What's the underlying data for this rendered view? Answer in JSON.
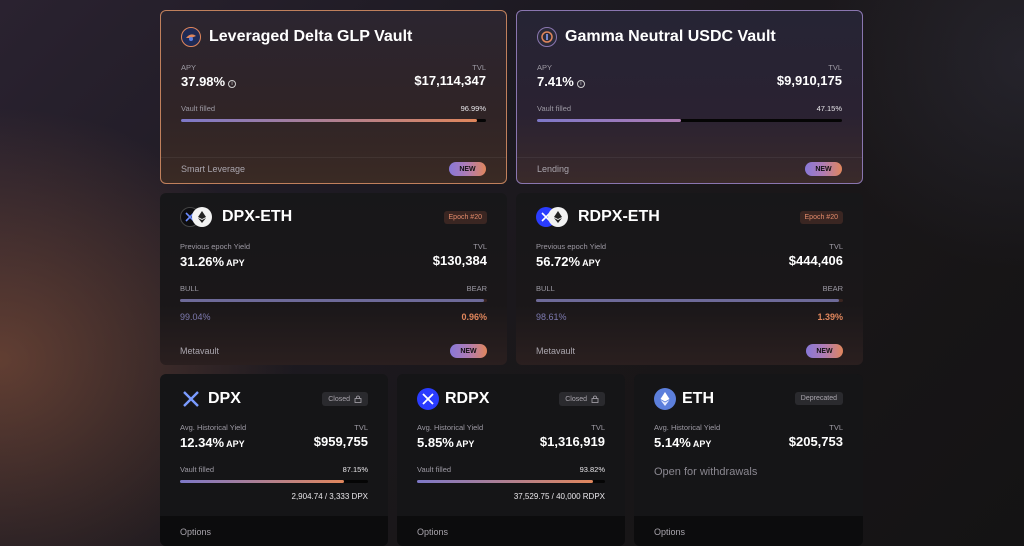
{
  "vaults": [
    {
      "title": "Leveraged Delta GLP Vault",
      "apy_label": "APY",
      "apy": "37.98%",
      "tvl_label": "TVL",
      "tvl": "$17,114,347",
      "filled_label": "Vault filled",
      "filled": "96.99%",
      "filled_fraction": 0.9699,
      "category": "Smart Leverage",
      "badge": "NEW"
    },
    {
      "title": "Gamma Neutral USDC Vault",
      "apy_label": "APY",
      "apy": "7.41%",
      "tvl_label": "TVL",
      "tvl": "$9,910,175",
      "filled_label": "Vault filled",
      "filled": "47.15%",
      "filled_fraction": 0.4715,
      "category": "Lending",
      "badge": "NEW"
    }
  ],
  "metavaults": [
    {
      "title": "DPX-ETH",
      "epoch": "Epoch #20",
      "yield_label": "Previous epoch Yield",
      "yield": "31.26%",
      "apy_suffix": "APY",
      "tvl_label": "TVL",
      "tvl": "$130,384",
      "bull_label": "BULL",
      "bear_label": "BEAR",
      "bull": "99.04%",
      "bear": "0.96%",
      "bull_fraction": 0.9904,
      "category": "Metavault",
      "badge": "NEW"
    },
    {
      "title": "RDPX-ETH",
      "epoch": "Epoch #20",
      "yield_label": "Previous epoch Yield",
      "yield": "56.72%",
      "apy_suffix": "APY",
      "tvl_label": "TVL",
      "tvl": "$444,406",
      "bull_label": "BULL",
      "bear_label": "BEAR",
      "bull": "98.61%",
      "bear": "1.39%",
      "bull_fraction": 0.9861,
      "category": "Metavault",
      "badge": "NEW"
    }
  ],
  "ssovs": [
    {
      "title": "DPX",
      "status": "Closed",
      "yield_label": "Avg. Historical Yield",
      "yield": "12.34%",
      "apy_suffix": "APY",
      "tvl_label": "TVL",
      "tvl": "$959,755",
      "filled_label": "Vault filled",
      "filled": "87.15%",
      "filled_fraction": 0.8715,
      "deposits": "2,904.74 / 3,333 DPX",
      "footer": "Options"
    },
    {
      "title": "RDPX",
      "status": "Closed",
      "yield_label": "Avg. Historical Yield",
      "yield": "5.85%",
      "apy_suffix": "APY",
      "tvl_label": "TVL",
      "tvl": "$1,316,919",
      "filled_label": "Vault filled",
      "filled": "93.82%",
      "filled_fraction": 0.9382,
      "deposits": "37,529.75 / 40,000 RDPX",
      "footer": "Options"
    },
    {
      "title": "ETH",
      "status": "Deprecated",
      "yield_label": "Avg. Historical Yield",
      "yield": "5.14%",
      "apy_suffix": "APY",
      "tvl_label": "TVL",
      "tvl": "$205,753",
      "note": "Open for withdrawals",
      "footer": "Options"
    }
  ],
  "colors": {
    "accent_orange": "#e0865c",
    "accent_purple": "#8878d8",
    "bear_text": "#e0865c",
    "bull_text": "#7d7ab0"
  }
}
